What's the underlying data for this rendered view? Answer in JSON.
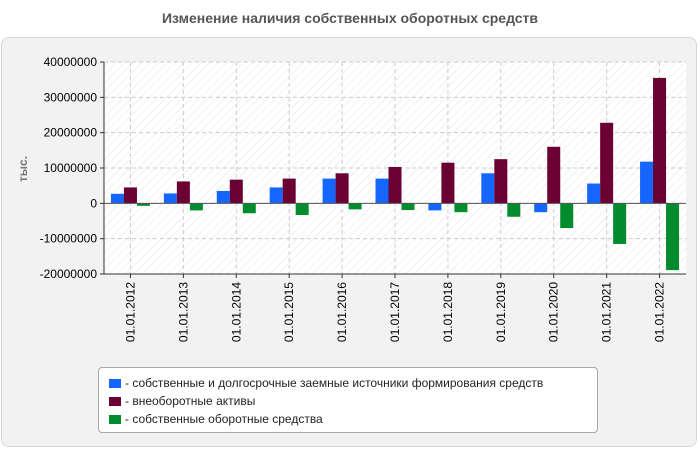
{
  "chart_data": {
    "type": "bar",
    "title": "Изменение наличия собственных оборотных средств",
    "ylabel": "тыс.",
    "xlabel": "",
    "ylim": [
      -20000000,
      40000000
    ],
    "yticks": [
      40000000,
      30000000,
      20000000,
      10000000,
      0,
      -10000000,
      -20000000
    ],
    "ytick_labels": [
      "40000000",
      "30000000",
      "20000000",
      "10000000",
      "0",
      "-10000000",
      "-20000000"
    ],
    "categories": [
      "01.01.2012",
      "01.01.2013",
      "01.01.2014",
      "01.01.2015",
      "01.01.2016",
      "01.01.2017",
      "01.01.2018",
      "01.01.2019",
      "01.01.2020",
      "01.01.2021",
      "01.01.2022"
    ],
    "series": [
      {
        "name": "- собственные и долгосрочные заемные источники формирования средств",
        "color": "#1565ff",
        "values": [
          2700000,
          2800000,
          3500000,
          4500000,
          7000000,
          7000000,
          -2000000,
          8500000,
          -2500000,
          5600000,
          11800000
        ]
      },
      {
        "name": "- внеоборотные активы",
        "color": "#6b0033",
        "values": [
          4500000,
          6200000,
          6700000,
          7000000,
          8500000,
          10300000,
          11500000,
          12500000,
          16000000,
          22800000,
          35500000
        ]
      },
      {
        "name": "- собственные оборотные средства",
        "color": "#008c2e",
        "values": [
          -700000,
          -2000000,
          -2800000,
          -3300000,
          -1700000,
          -1900000,
          -2500000,
          -3800000,
          -7000000,
          -11500000,
          -18900000
        ]
      }
    ],
    "grid": true,
    "legend": "bottom"
  }
}
